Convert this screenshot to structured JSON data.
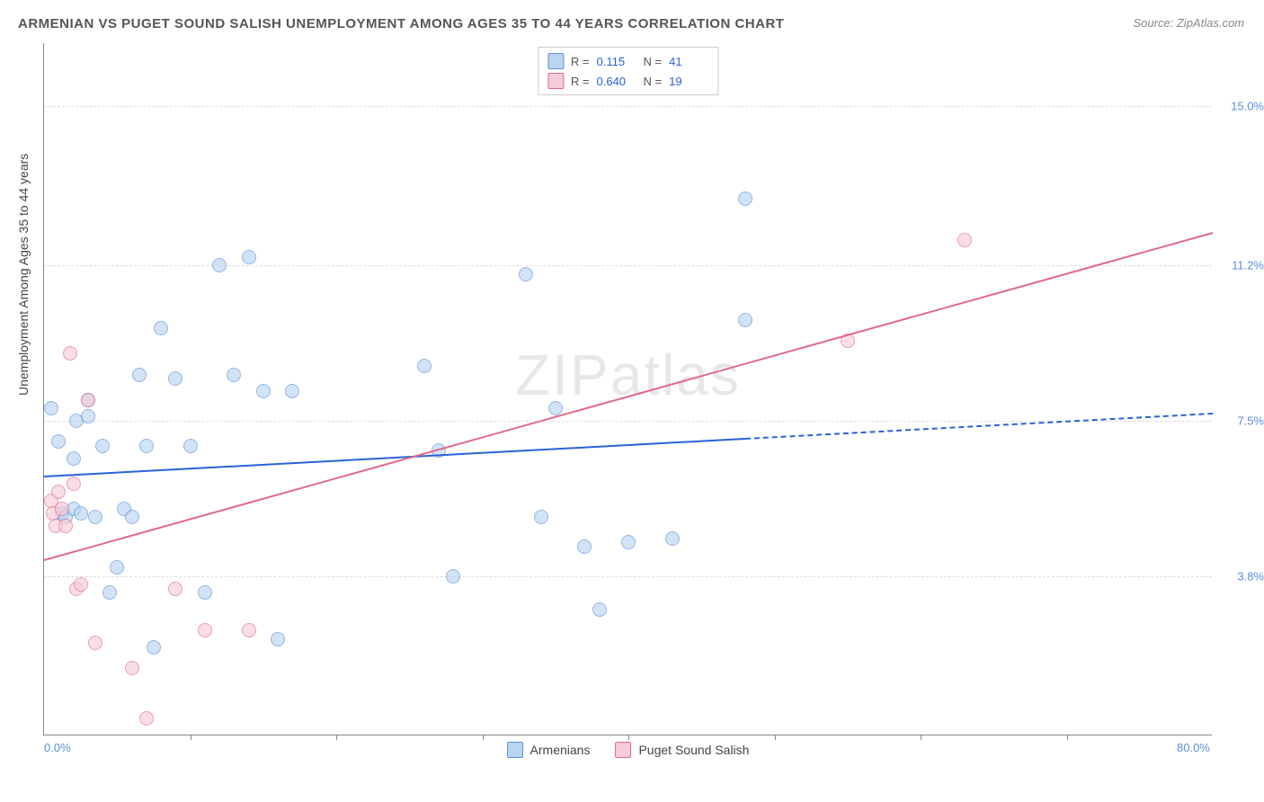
{
  "chart": {
    "type": "scatter",
    "title": "ARMENIAN VS PUGET SOUND SALISH UNEMPLOYMENT AMONG AGES 35 TO 44 YEARS CORRELATION CHART",
    "source": "Source: ZipAtlas.com",
    "y_axis_label": "Unemployment Among Ages 35 to 44 years",
    "watermark_prefix": "ZIP",
    "watermark_suffix": "atlas",
    "background_color": "#ffffff",
    "grid_color": "#dddddd",
    "axis_color": "#888888",
    "xlim": [
      0,
      80
    ],
    "ylim": [
      0,
      16.5
    ],
    "x_ticks": [
      {
        "pos": 0,
        "label": "0.0%"
      },
      {
        "pos": 80,
        "label": "80.0%"
      }
    ],
    "x_minor_ticks": [
      10,
      20,
      30,
      40,
      50,
      60,
      70
    ],
    "y_gridlines": [
      {
        "val": 3.8,
        "label": "3.8%"
      },
      {
        "val": 7.5,
        "label": "7.5%"
      },
      {
        "val": 11.2,
        "label": "11.2%"
      },
      {
        "val": 15.0,
        "label": "15.0%"
      }
    ],
    "series": [
      {
        "name": "Armenians",
        "marker_fill": "#b9d5f0",
        "marker_stroke": "#5b8fd6",
        "line_color": "#2962d9",
        "r_value": "0.115",
        "n_value": "41",
        "trend": {
          "x1": 0,
          "y1": 6.2,
          "x2_solid": 48,
          "y2_solid": 7.1,
          "x2_dash": 80,
          "y2_dash": 7.7
        },
        "points": [
          [
            0.5,
            7.8
          ],
          [
            1,
            7.0
          ],
          [
            1.2,
            5.3
          ],
          [
            1.5,
            5.2
          ],
          [
            2,
            6.6
          ],
          [
            2,
            5.4
          ],
          [
            2.2,
            7.5
          ],
          [
            2.5,
            5.3
          ],
          [
            3,
            7.6
          ],
          [
            3,
            8.0
          ],
          [
            3.5,
            5.2
          ],
          [
            4,
            6.9
          ],
          [
            4.5,
            3.4
          ],
          [
            5,
            4.0
          ],
          [
            5.5,
            5.4
          ],
          [
            6,
            5.2
          ],
          [
            6.5,
            8.6
          ],
          [
            7,
            6.9
          ],
          [
            7.5,
            2.1
          ],
          [
            8,
            9.7
          ],
          [
            9,
            8.5
          ],
          [
            10,
            6.9
          ],
          [
            11,
            3.4
          ],
          [
            12,
            11.2
          ],
          [
            13,
            8.6
          ],
          [
            14,
            11.4
          ],
          [
            15,
            8.2
          ],
          [
            16,
            2.3
          ],
          [
            17,
            8.2
          ],
          [
            26,
            8.8
          ],
          [
            27,
            6.8
          ],
          [
            28,
            3.8
          ],
          [
            33,
            11.0
          ],
          [
            34,
            5.2
          ],
          [
            35,
            7.8
          ],
          [
            37,
            4.5
          ],
          [
            38,
            3.0
          ],
          [
            40,
            4.6
          ],
          [
            43,
            4.7
          ],
          [
            48,
            9.9
          ],
          [
            48,
            12.8
          ]
        ]
      },
      {
        "name": "Puget Sound Salish",
        "marker_fill": "#f6cdd8",
        "marker_stroke": "#e06a8c",
        "line_color": "#e06a8c",
        "r_value": "0.640",
        "n_value": "19",
        "trend": {
          "x1": 0,
          "y1": 4.2,
          "x2_solid": 80,
          "y2_solid": 12.0,
          "x2_dash": 80,
          "y2_dash": 12.0
        },
        "points": [
          [
            0.5,
            5.6
          ],
          [
            0.6,
            5.3
          ],
          [
            0.8,
            5.0
          ],
          [
            1,
            5.8
          ],
          [
            1.2,
            5.4
          ],
          [
            1.5,
            5.0
          ],
          [
            1.8,
            9.1
          ],
          [
            2,
            6.0
          ],
          [
            2.2,
            3.5
          ],
          [
            2.5,
            3.6
          ],
          [
            3,
            8.0
          ],
          [
            3.5,
            2.2
          ],
          [
            6,
            1.6
          ],
          [
            7,
            0.4
          ],
          [
            9,
            3.5
          ],
          [
            11,
            2.5
          ],
          [
            14,
            2.5
          ],
          [
            55,
            9.4
          ],
          [
            63,
            11.8
          ]
        ]
      }
    ],
    "legend_top_labels": {
      "r": "R =",
      "n": "N ="
    },
    "marker_size": 16,
    "title_fontsize": 15,
    "label_fontsize": 14,
    "tick_fontsize": 13
  }
}
